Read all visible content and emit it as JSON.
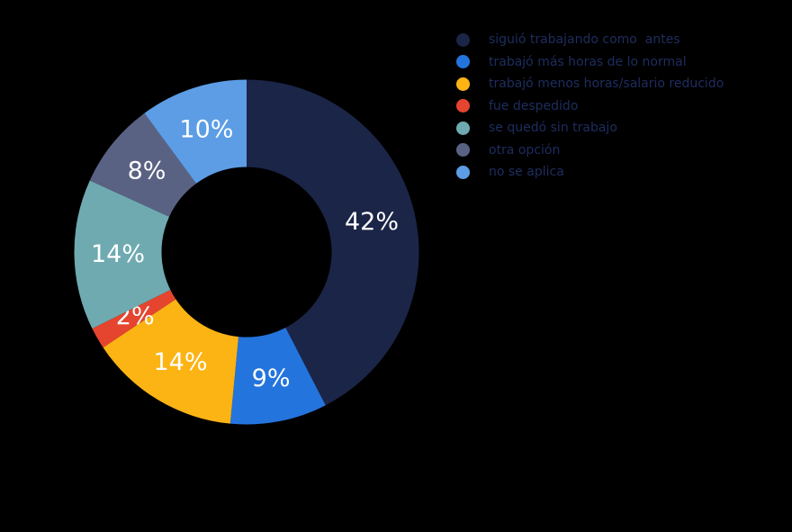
{
  "background_color": "#000000",
  "chart_data": {
    "type": "pie",
    "subtype": "donut",
    "categories": [
      "siguió trabajando como  antes",
      "trabajó más horas de lo normal",
      "trabajó menos horas/salario reducido",
      "fue despedido",
      "se quedó sin trabajo",
      "otra opción",
      "no se aplica"
    ],
    "values": [
      42,
      9,
      14,
      2,
      14,
      8,
      10
    ],
    "unit": "%",
    "slice_labels": [
      "42%",
      "9%",
      "14%",
      "2%",
      "14%",
      "8%",
      "10%"
    ],
    "colors": [
      "#1b2547",
      "#2474dd",
      "#fcb414",
      "#e5452f",
      "#6faab1",
      "#5a6284",
      "#5c9de5"
    ],
    "start_angle_deg": 0,
    "direction": "clockwise",
    "inner_radius_ratio": 0.49,
    "legend_position": "right",
    "slice_label_color": "#ffffff",
    "legend_text_color": "#1e2d5f",
    "grid": false
  }
}
